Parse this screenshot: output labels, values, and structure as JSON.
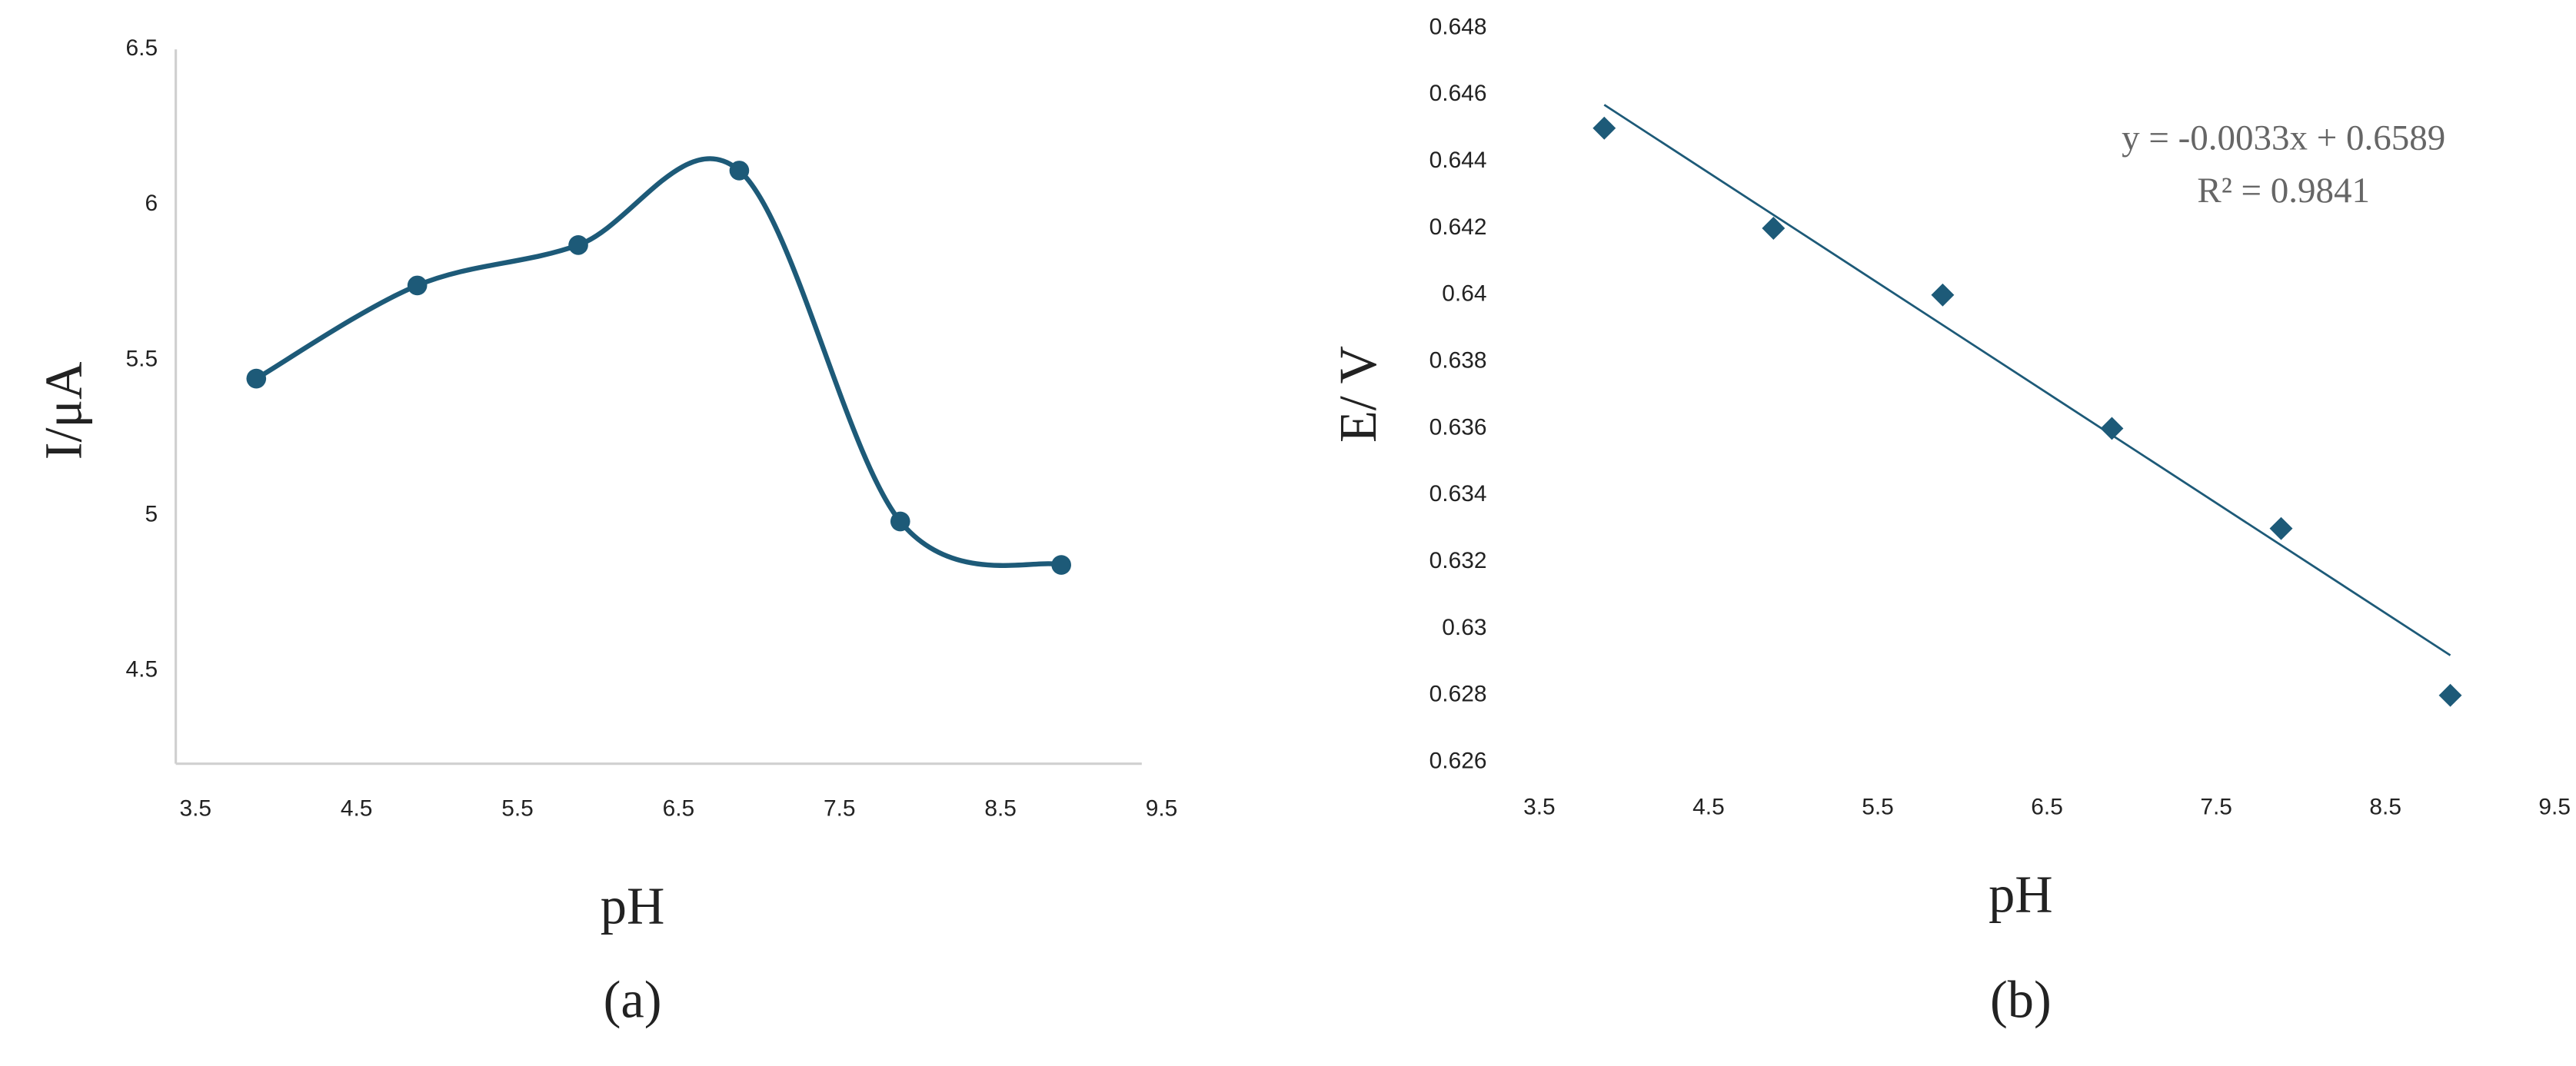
{
  "chart_data": [
    {
      "type": "line",
      "smooth": true,
      "marker": "circle",
      "color": "#1d5a78",
      "x": [
        4,
        5,
        6,
        7,
        8,
        9
      ],
      "values": [
        5.44,
        5.74,
        5.87,
        6.11,
        4.98,
        4.84
      ],
      "xlim": [
        3.5,
        9.5
      ],
      "xticks": [
        3.5,
        4.5,
        5.5,
        6.5,
        7.5,
        8.5,
        9.5
      ],
      "ylim": [
        4.2,
        6.5
      ],
      "yticks": [
        4.5,
        5,
        5.5,
        6,
        6.5
      ],
      "x_label": "pH",
      "y_label": "I/μA",
      "caption": "(a)",
      "axis_lines": true,
      "grid": false
    },
    {
      "type": "scatter",
      "marker": "diamond",
      "color": "#1d5a78",
      "x": [
        4,
        5,
        6,
        7,
        8,
        9
      ],
      "values": [
        0.645,
        0.642,
        0.64,
        0.636,
        0.633,
        0.628
      ],
      "xlim": [
        3.5,
        9.5
      ],
      "xticks": [
        3.5,
        4.5,
        5.5,
        6.5,
        7.5,
        8.5,
        9.5
      ],
      "ylim": [
        0.626,
        0.648
      ],
      "yticks": [
        0.626,
        0.628,
        0.63,
        0.632,
        0.634,
        0.636,
        0.638,
        0.64,
        0.642,
        0.644,
        0.646,
        0.648
      ],
      "trendline": {
        "slope": -0.0033,
        "intercept": 0.6589
      },
      "annotations": [
        "y = -0.0033x + 0.6589",
        "R² = 0.9841"
      ],
      "x_label": "pH",
      "y_label": "E/ V",
      "caption": "(b)",
      "axis_lines": false,
      "grid": false
    }
  ]
}
